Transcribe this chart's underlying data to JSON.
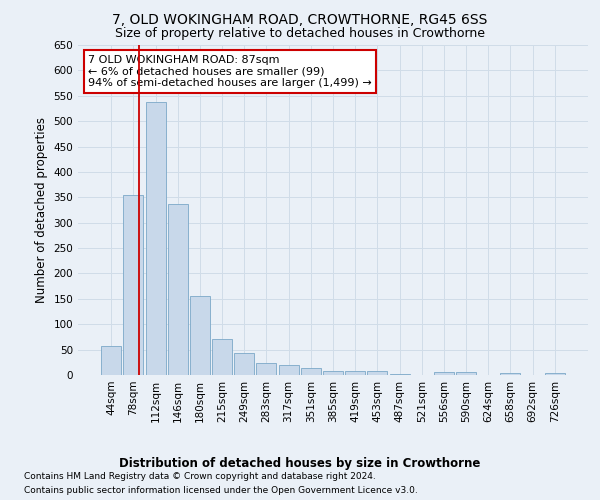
{
  "title": "7, OLD WOKINGHAM ROAD, CROWTHORNE, RG45 6SS",
  "subtitle": "Size of property relative to detached houses in Crowthorne",
  "xlabel_bottom": "Distribution of detached houses by size in Crowthorne",
  "ylabel": "Number of detached properties",
  "footer_line1": "Contains HM Land Registry data © Crown copyright and database right 2024.",
  "footer_line2": "Contains public sector information licensed under the Open Government Licence v3.0.",
  "annotation_line1": "7 OLD WOKINGHAM ROAD: 87sqm",
  "annotation_line2": "← 6% of detached houses are smaller (99)",
  "annotation_line3": "94% of semi-detached houses are larger (1,499) →",
  "bar_labels": [
    "44sqm",
    "78sqm",
    "112sqm",
    "146sqm",
    "180sqm",
    "215sqm",
    "249sqm",
    "283sqm",
    "317sqm",
    "351sqm",
    "385sqm",
    "419sqm",
    "453sqm",
    "487sqm",
    "521sqm",
    "556sqm",
    "590sqm",
    "624sqm",
    "658sqm",
    "692sqm",
    "726sqm"
  ],
  "bar_values": [
    58,
    355,
    537,
    336,
    155,
    70,
    43,
    24,
    20,
    13,
    7,
    7,
    7,
    2,
    0,
    5,
    5,
    0,
    3,
    0,
    4
  ],
  "bar_color": "#c8d8ea",
  "bar_edge_color": "#7ba8c8",
  "ylim": [
    0,
    650
  ],
  "yticks": [
    0,
    50,
    100,
    150,
    200,
    250,
    300,
    350,
    400,
    450,
    500,
    550,
    600,
    650
  ],
  "grid_color": "#d0dce8",
  "axes_bg_color": "#eaf0f7",
  "fig_bg_color": "#eaf0f7",
  "vline_color": "#cc0000",
  "annotation_box_color": "#cc0000",
  "title_fontsize": 10,
  "subtitle_fontsize": 9,
  "axis_label_fontsize": 8.5,
  "tick_fontsize": 7.5,
  "annotation_fontsize": 8,
  "footer_fontsize": 6.5,
  "xlabel_bottom_fontsize": 8.5
}
